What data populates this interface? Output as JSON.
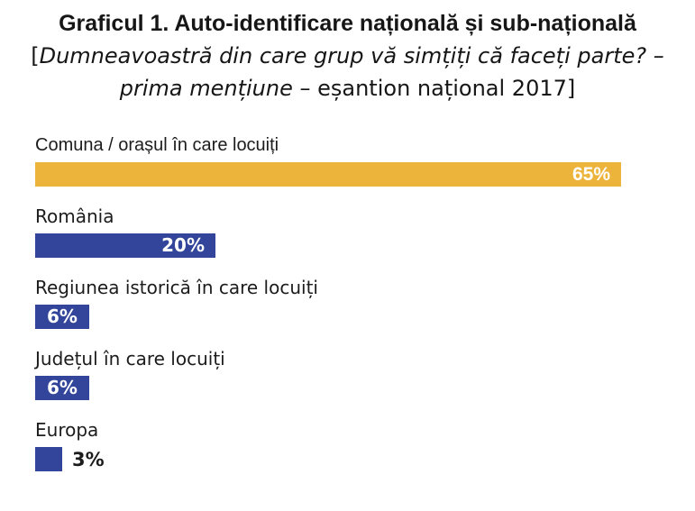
{
  "title": {
    "line1": "Graficul 1. Auto-identificare națională și sub-națională",
    "line2_bracket": "[",
    "line2_italic": "Dumneavoastră din care grup vă simțiți că faceți parte? –",
    "line3_italic": "prima mențiune",
    "line3_regular": " – eșantion național 2017]"
  },
  "chart_data": {
    "type": "bar",
    "orientation": "horizontal",
    "title": "Graficul 1. Auto-identificare națională și sub-națională",
    "subtitle": "[Dumneavoastră din care grup vă simțiți că faceți parte? – prima mențiune – eșantion național 2017]",
    "categories": [
      "Comuna / orașul în care locuiți",
      "România",
      "Regiunea istorică în care locuiți",
      "Județul în care locuiți",
      "Europa"
    ],
    "values": [
      65,
      20,
      6,
      6,
      3
    ],
    "value_labels": [
      "65%",
      "20%",
      "6%",
      "6%",
      "3%"
    ],
    "unit": "%",
    "xlim": [
      0,
      65
    ],
    "bar_colors": [
      "#EDB43C",
      "#32459A",
      "#32459A",
      "#32459A",
      "#32459A"
    ],
    "value_label_placement": [
      "inside-right",
      "inside-right",
      "inside-center",
      "inside-center",
      "outside-right"
    ],
    "axes_visible": false,
    "grid": false,
    "legend": false
  },
  "colors": {
    "background": "#FFFFFF",
    "accent_yellow": "#EDB43C",
    "accent_blue": "#32459A",
    "label_text": "#1C1C1C",
    "value_text_inside": "#FFFFFF",
    "value_text_outside": "#1C1C1C"
  }
}
